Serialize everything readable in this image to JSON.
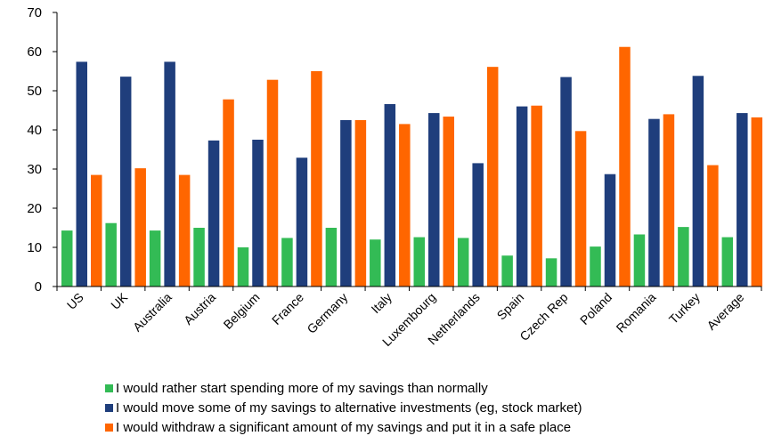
{
  "chart_data": {
    "type": "bar",
    "title": "",
    "xlabel": "",
    "ylabel": "",
    "ylim": [
      0,
      70
    ],
    "yticks": [
      0,
      10,
      20,
      30,
      40,
      50,
      60,
      70
    ],
    "grid": false,
    "legend_position": "bottom",
    "categories": [
      "US",
      "UK",
      "Australia",
      "Austria",
      "Belgium",
      "France",
      "Germany",
      "Italy",
      "Luxembourg",
      "Netherlands",
      "Spain",
      "Czech Rep",
      "Poland",
      "Romania",
      "Turkey",
      "Average"
    ],
    "series": [
      {
        "name": "I would rather start spending more of my savings than normally",
        "color": "#33bb55",
        "values": [
          14.3,
          16.2,
          14.3,
          15.0,
          10.0,
          12.4,
          15.0,
          12.0,
          12.6,
          12.4,
          7.9,
          7.2,
          10.2,
          13.3,
          15.2,
          12.6
        ]
      },
      {
        "name": "I would move some of my savings to alternative investments (eg, stock market)",
        "color": "#1f3e7c",
        "values": [
          57.4,
          53.6,
          57.4,
          37.3,
          37.5,
          32.9,
          42.5,
          46.6,
          44.3,
          31.5,
          46.0,
          53.5,
          28.7,
          42.8,
          53.8,
          44.3
        ]
      },
      {
        "name": "I would withdraw a significant amount of my savings and put it in a safe place",
        "color": "#ff6600",
        "values": [
          28.5,
          30.2,
          28.5,
          47.8,
          52.8,
          55.0,
          42.5,
          41.5,
          43.4,
          56.1,
          46.2,
          39.7,
          61.2,
          44.0,
          31.0,
          43.2
        ]
      }
    ]
  }
}
